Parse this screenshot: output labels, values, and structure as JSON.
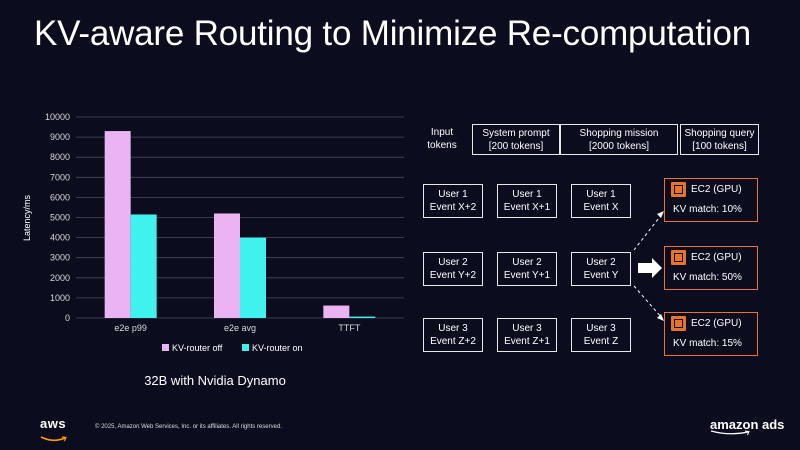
{
  "title": "KV-aware Routing to Minimize Re-computation",
  "chart_data": {
    "type": "bar",
    "categories": [
      "e2e p99",
      "e2e avg",
      "TTFT"
    ],
    "series": [
      {
        "name": "KV-router off",
        "color": "#eab3f2",
        "values": [
          9300,
          5200,
          620
        ]
      },
      {
        "name": "KV-router on",
        "color": "#3ff2ee",
        "values": [
          5150,
          4000,
          70
        ]
      }
    ],
    "ylabel": "Latency/ms",
    "ylim": [
      0,
      10000
    ],
    "yticks": [
      "0",
      "1000",
      "2000",
      "3000",
      "4000",
      "5000",
      "6000",
      "7000",
      "8000",
      "9000",
      "10000"
    ],
    "grid": true,
    "legend": "bottom"
  },
  "chart_caption": "32B with Nvidia Dynamo",
  "tokens": {
    "label_line1": "Input",
    "label_line2": "tokens",
    "system": {
      "line1": "System prompt",
      "line2": "[200 tokens]"
    },
    "mission": {
      "line1": "Shopping mission",
      "line2": "[2000 tokens]"
    },
    "query": {
      "line1": "Shopping query",
      "line2": "[100 tokens]"
    }
  },
  "events": [
    [
      {
        "l1": "User 1",
        "l2": "Event X+2"
      },
      {
        "l1": "User 1",
        "l2": "Event X+1"
      },
      {
        "l1": "User 1",
        "l2": "Event X"
      }
    ],
    [
      {
        "l1": "User 2",
        "l2": "Event Y+2"
      },
      {
        "l1": "User 2",
        "l2": "Event Y+1"
      },
      {
        "l1": "User 2",
        "l2": "Event Y"
      }
    ],
    [
      {
        "l1": "User 3",
        "l2": "Event Z+2"
      },
      {
        "l1": "User 3",
        "l2": "Event Z+1"
      },
      {
        "l1": "User 3",
        "l2": "Event Z"
      }
    ]
  ],
  "gpus": [
    {
      "name": "EC2 (GPU)",
      "match": "KV match: 10%"
    },
    {
      "name": "EC2 (GPU)",
      "match": "KV match: 50%"
    },
    {
      "name": "EC2 (GPU)",
      "match": "KV match: 15%"
    }
  ],
  "accent_color": "#e8742a",
  "footer": {
    "copyright": "© 2025, Amazon Web Services, Inc. or its affiliates. All rights reserved.",
    "aws_logo": "aws",
    "ads_logo": "amazon ads"
  }
}
